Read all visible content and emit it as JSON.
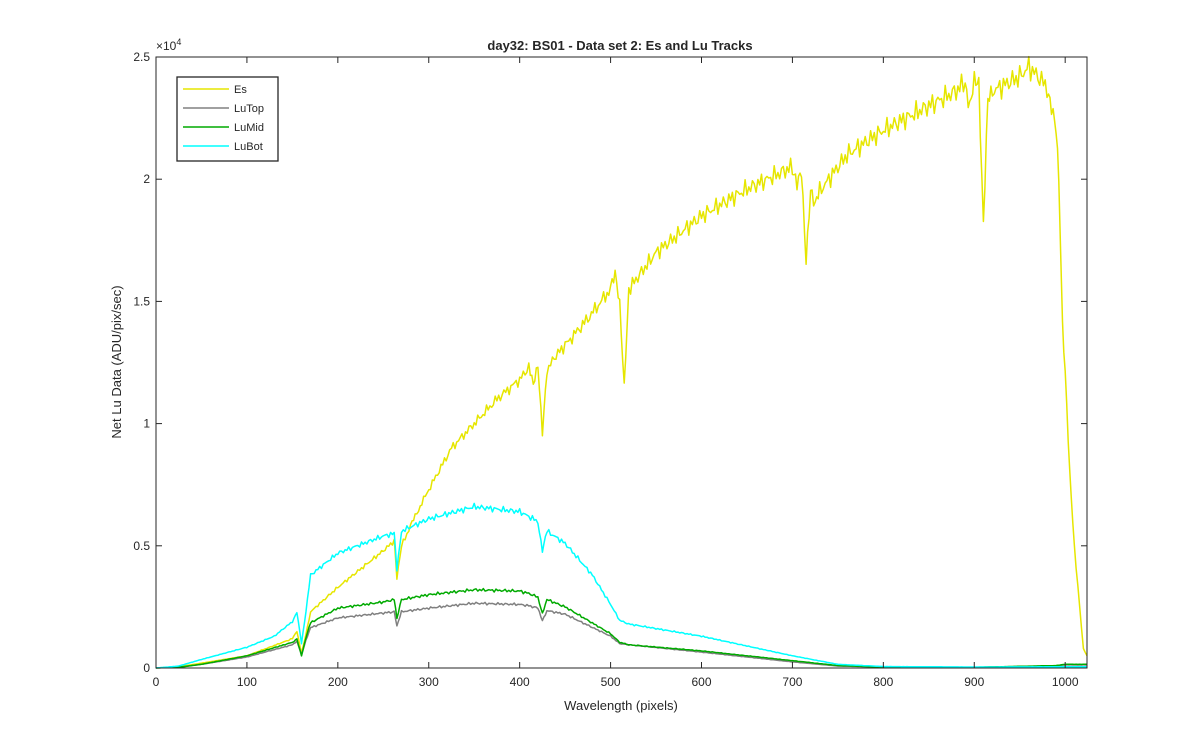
{
  "chart_data": {
    "type": "line",
    "title": "day32: BS01 - Data set 2: Es and Lu Tracks",
    "xlabel": "Wavelength (pixels)",
    "ylabel": "Net Lu Data (ADU/pix/sec)",
    "xlim": [
      0,
      1024
    ],
    "ylim": [
      0,
      25000
    ],
    "xticks": [
      0,
      100,
      200,
      300,
      400,
      500,
      600,
      700,
      800,
      900,
      1000
    ],
    "yticks": [
      0,
      5000,
      10000,
      15000,
      20000,
      25000
    ],
    "xtick_labels": [
      "0",
      "100",
      "200",
      "300",
      "400",
      "500",
      "600",
      "700",
      "800",
      "900",
      "1000"
    ],
    "ytick_labels": [
      "0",
      "0.5",
      "1",
      "1.5",
      "2",
      "2.5"
    ],
    "y_exponent_base": "×10",
    "y_exponent_power": "4",
    "grid": false,
    "legend_position": "top-left",
    "series": [
      {
        "name": "Es",
        "color": "#e6e600",
        "x": [
          0,
          25,
          50,
          100,
          150,
          155,
          160,
          165,
          170,
          200,
          250,
          262,
          265,
          270,
          280,
          285,
          300,
          325,
          350,
          375,
          400,
          410,
          415,
          420,
          425,
          430,
          440,
          450,
          475,
          500,
          505,
          510,
          515,
          520,
          550,
          600,
          650,
          700,
          705,
          710,
          715,
          720,
          725,
          730,
          760,
          800,
          850,
          880,
          890,
          895,
          900,
          905,
          910,
          915,
          920,
          950,
          960,
          970,
          980,
          985,
          990,
          993,
          995,
          997,
          1000,
          1005,
          1010,
          1020,
          1024
        ],
        "y": [
          0,
          50,
          200,
          500,
          1200,
          1500,
          600,
          1400,
          2300,
          3300,
          4800,
          5200,
          3700,
          5000,
          5800,
          6200,
          7300,
          9000,
          10000,
          11000,
          11800,
          12300,
          11500,
          12300,
          9600,
          12200,
          12800,
          13200,
          14300,
          15500,
          16000,
          14800,
          11500,
          15500,
          17000,
          18500,
          19600,
          20500,
          20000,
          20500,
          16700,
          19500,
          18800,
          19500,
          21000,
          22000,
          23000,
          23600,
          24000,
          23000,
          24000,
          23700,
          18000,
          23200,
          23600,
          24200,
          24600,
          24200,
          23800,
          23000,
          22000,
          20000,
          17000,
          14000,
          12000,
          8000,
          5000,
          800,
          500
        ]
      },
      {
        "name": "LuTop",
        "color": "#808080",
        "x": [
          0,
          25,
          50,
          100,
          150,
          155,
          160,
          165,
          170,
          200,
          250,
          262,
          265,
          270,
          300,
          350,
          400,
          410,
          420,
          425,
          430,
          450,
          500,
          510,
          520,
          600,
          700,
          750,
          800,
          900,
          1000,
          1024
        ],
        "y": [
          0,
          30,
          150,
          450,
          950,
          1100,
          550,
          1150,
          1650,
          2050,
          2250,
          2300,
          1700,
          2300,
          2450,
          2650,
          2600,
          2550,
          2450,
          1950,
          2350,
          2200,
          1300,
          1000,
          950,
          650,
          250,
          80,
          40,
          30,
          80,
          80
        ]
      },
      {
        "name": "LuMid",
        "color": "#00aa00",
        "x": [
          0,
          25,
          50,
          100,
          150,
          155,
          160,
          165,
          170,
          200,
          250,
          262,
          265,
          270,
          300,
          350,
          400,
          410,
          420,
          425,
          430,
          450,
          500,
          510,
          520,
          600,
          700,
          750,
          800,
          900,
          990,
          1000,
          1024
        ],
        "y": [
          0,
          30,
          150,
          500,
          1050,
          1200,
          500,
          1250,
          1850,
          2450,
          2700,
          2800,
          2000,
          2800,
          3000,
          3200,
          3150,
          3050,
          2900,
          2250,
          2800,
          2500,
          1400,
          1050,
          950,
          700,
          300,
          100,
          40,
          30,
          100,
          150,
          150
        ]
      },
      {
        "name": "LuBot",
        "color": "#00ffff",
        "x": [
          0,
          25,
          50,
          100,
          130,
          150,
          155,
          160,
          165,
          170,
          200,
          250,
          262,
          265,
          270,
          300,
          350,
          400,
          410,
          420,
          425,
          430,
          450,
          480,
          500,
          510,
          520,
          600,
          650,
          700,
          750,
          800,
          900,
          1000,
          1024
        ],
        "y": [
          0,
          80,
          350,
          850,
          1300,
          1900,
          2300,
          1000,
          2300,
          3800,
          4700,
          5400,
          5500,
          4000,
          5600,
          6100,
          6600,
          6400,
          6200,
          6000,
          4800,
          5600,
          5100,
          3800,
          2600,
          1950,
          1800,
          1300,
          900,
          500,
          150,
          60,
          40,
          50,
          50
        ]
      }
    ]
  }
}
